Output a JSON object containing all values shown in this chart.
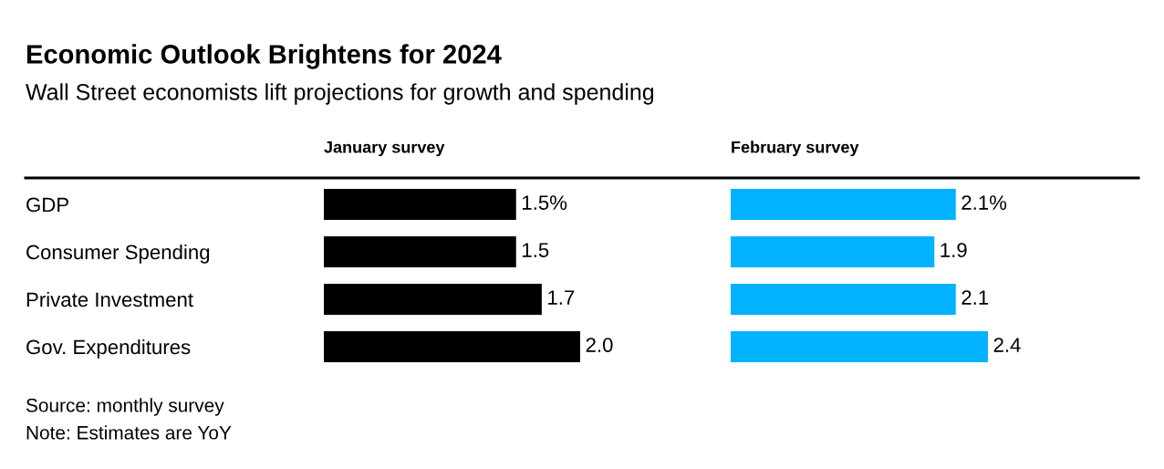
{
  "chart_data": [
    {
      "type": "other",
      "title": "Economic Outlook Brightens for 2024",
      "subtitle": "Wall Street economists lift projections for growth and spending",
      "annotations": [
        "Source: monthly survey",
        "Note: Estimates are YoY"
      ]
    },
    {
      "type": "bar",
      "orientation": "horizontal",
      "title": "January survey",
      "categories": [
        "GDP",
        "Consumer Spending",
        "Private Investment",
        "Gov. Expenditures"
      ],
      "values": [
        1.5,
        1.5,
        1.7,
        2.0
      ],
      "value_labels": [
        "1.5%",
        "1.5",
        "1.7",
        "2.0"
      ],
      "color": "#000000"
    },
    {
      "type": "bar",
      "orientation": "horizontal",
      "title": "February survey",
      "categories": [
        null,
        null,
        null,
        null
      ],
      "values": [
        2.1,
        1.9,
        2.1,
        2.4
      ],
      "value_labels": [
        "2.1%",
        "1.9",
        "2.1",
        "2.4"
      ],
      "color": "#00b2ff"
    }
  ]
}
